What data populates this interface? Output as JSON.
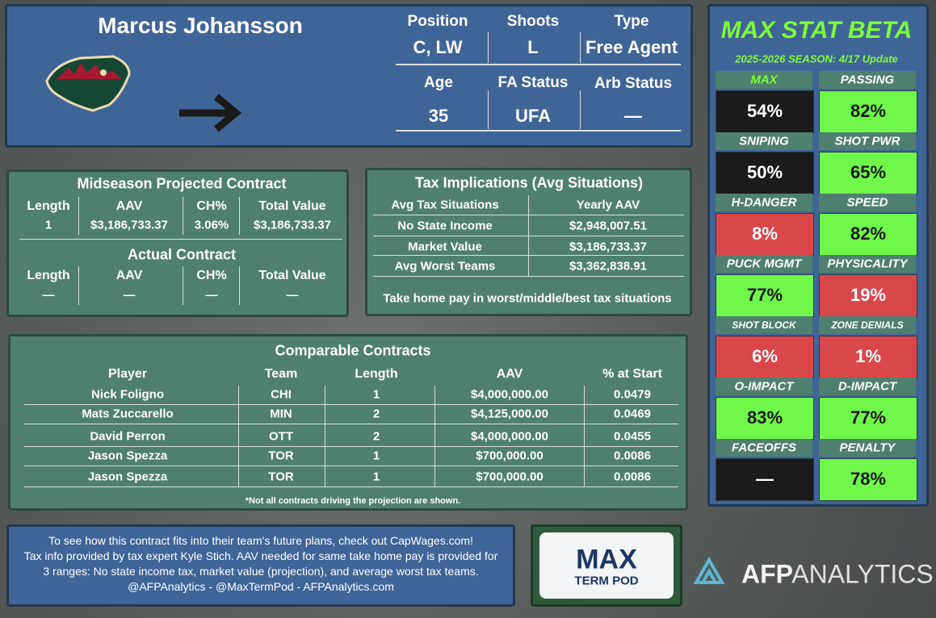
{
  "header": {
    "name": "Marcus Johansson",
    "fields": [
      {
        "label": "Position",
        "value": "C, LW"
      },
      {
        "label": "Shoots",
        "value": "L"
      },
      {
        "label": "Type",
        "value": "Free Agent"
      },
      {
        "label": "Age",
        "value": "35"
      },
      {
        "label": "FA Status",
        "value": "UFA"
      },
      {
        "label": "Arb Status",
        "value": "—"
      }
    ]
  },
  "projected_contract": {
    "title": "Midseason Projected Contract",
    "headers": [
      "Length",
      "AAV",
      "CH%",
      "Total Value"
    ],
    "row": [
      "1",
      "$3,186,733.37",
      "3.06%",
      "$3,186,733.37"
    ]
  },
  "actual_contract": {
    "title": "Actual Contract",
    "headers": [
      "Length",
      "AAV",
      "CH%",
      "Total Value"
    ],
    "row": [
      "—",
      "—",
      "—",
      "—"
    ]
  },
  "tax": {
    "title": "Tax Implications (Avg Situations)",
    "headers": [
      "Avg Tax Situations",
      "Yearly AAV"
    ],
    "rows": [
      [
        "No State Income",
        "$2,948,007.51"
      ],
      [
        "Market Value",
        "$3,186,733.37"
      ],
      [
        "Avg Worst Teams",
        "$3,362,838.91"
      ]
    ],
    "note": "Take home pay in worst/middle/best tax situations"
  },
  "comparables": {
    "title": "Comparable Contracts",
    "headers": [
      "Player",
      "Team",
      "Length",
      "AAV",
      "% at Start"
    ],
    "rows": [
      [
        "Nick Foligno",
        "CHI",
        "1",
        "$4,000,000.00",
        "0.0479"
      ],
      [
        "Mats Zuccarello",
        "MIN",
        "2",
        "$4,125,000.00",
        "0.0469"
      ],
      [
        "David Perron",
        "OTT",
        "2",
        "$4,000,000.00",
        "0.0455"
      ],
      [
        "Jason Spezza",
        "TOR",
        "1",
        "$700,000.00",
        "0.0086"
      ],
      [
        "Jason Spezza",
        "TOR",
        "1",
        "$700,000.00",
        "0.0086"
      ]
    ],
    "footnote": "*Not all contracts driving the projection are shown."
  },
  "footer": {
    "lines": [
      "To see how this contract fits into their team's future plans, check out CapWages.com!",
      "Tax info provided by tax expert Kyle Stich. AAV needed for same take home pay is provided for",
      "3 ranges: No state income tax, market value (projection), and average worst tax teams.",
      "@AFPAnalytics - @MaxTermPod - AFPAnalytics.com"
    ]
  },
  "logos": {
    "max_term_pod": [
      "MAX",
      "TERM POD"
    ],
    "afp": [
      "AFP",
      "ANALYTICS"
    ]
  },
  "stats": {
    "title": "MAX STAT BETA",
    "subtitle": "2025-2026 SEASON: 4/17 Update",
    "items": [
      {
        "label": "MAX",
        "value": "54%",
        "color": "#1b1b1b"
      },
      {
        "label": "PASSING",
        "value": "82%",
        "color": "#6ff74a"
      },
      {
        "label": "SNIPING",
        "value": "50%",
        "color": "#1b1b1b"
      },
      {
        "label": "SHOT PWR",
        "value": "65%",
        "color": "#6ff74a"
      },
      {
        "label": "H-DANGER",
        "value": "8%",
        "color": "#d9474a"
      },
      {
        "label": "SPEED",
        "value": "82%",
        "color": "#6ff74a"
      },
      {
        "label": "PUCK MGMT",
        "value": "77%",
        "color": "#6ff74a"
      },
      {
        "label": "PHYSICALITY",
        "value": "19%",
        "color": "#d9474a"
      },
      {
        "label": "SHOT BLOCK",
        "value": "6%",
        "color": "#d9474a"
      },
      {
        "label": "ZONE DENIALS",
        "value": "1%",
        "color": "#d9474a"
      },
      {
        "label": "O-IMPACT",
        "value": "83%",
        "color": "#6ff74a"
      },
      {
        "label": "D-IMPACT",
        "value": "77%",
        "color": "#6ff74a"
      },
      {
        "label": "FACEOFFS",
        "value": "—",
        "color": "#1b1b1b"
      },
      {
        "label": "PENALTY",
        "value": "78%",
        "color": "#6ff74a"
      }
    ]
  }
}
